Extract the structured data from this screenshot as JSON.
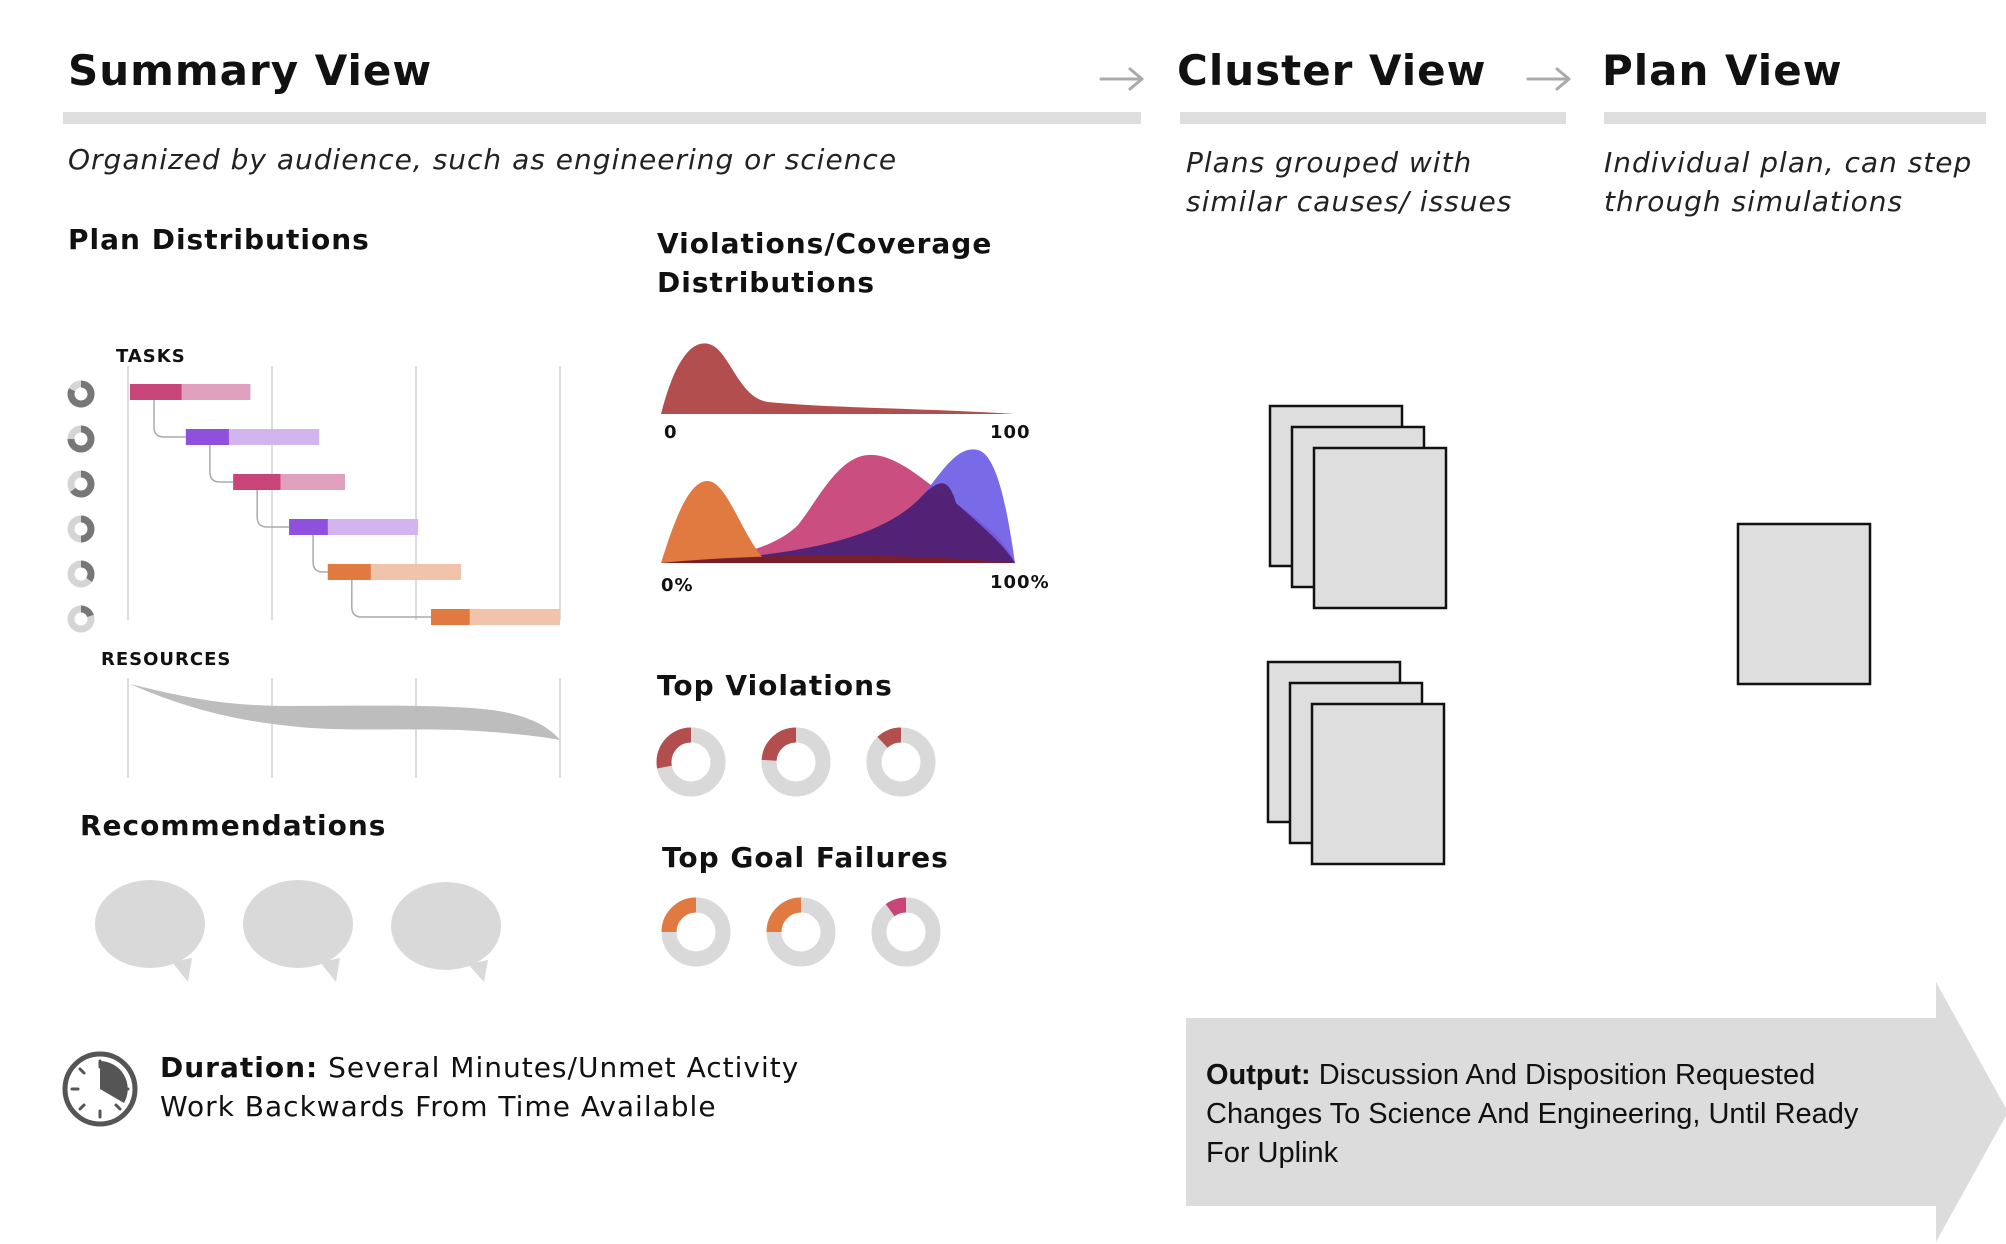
{
  "summary": {
    "title": "Summary View",
    "subtitle": "Organized by audience, such as engineering or science",
    "plan_distributions": {
      "title": "Plan Distributions",
      "tasks_label": "TASKS",
      "resources_label": "RESOURCES",
      "tasks": [
        {
          "start": 0.0,
          "progress": 0.12,
          "end": 0.28,
          "color": "#c8457a",
          "light": "#dfa1be"
        },
        {
          "start": 0.13,
          "progress": 0.23,
          "end": 0.44,
          "color": "#9050de",
          "light": "#d2b5ef"
        },
        {
          "start": 0.24,
          "progress": 0.35,
          "end": 0.5,
          "color": "#c8457a",
          "light": "#dfa1be"
        },
        {
          "start": 0.37,
          "progress": 0.46,
          "end": 0.67,
          "color": "#9050de",
          "light": "#d2b5ef"
        },
        {
          "start": 0.46,
          "progress": 0.56,
          "end": 0.77,
          "color": "#e07a40",
          "light": "#f1c3aa"
        },
        {
          "start": 0.7,
          "progress": 0.79,
          "end": 1.0,
          "color": "#e07a40",
          "light": "#f1c3aa"
        }
      ],
      "task_progress_rings": [
        0.82,
        0.75,
        0.65,
        0.5,
        0.35,
        0.2
      ]
    },
    "violations_coverage": {
      "title_line1": "Violations/Coverage",
      "title_line2": "Distributions",
      "top_axis_min": "0",
      "top_axis_max": "100",
      "bottom_axis_min": "0%",
      "bottom_axis_max": "100%"
    },
    "top_violations": {
      "title": "Top Violations",
      "donuts": [
        {
          "fraction": 0.28,
          "color": "#b24e4e"
        },
        {
          "fraction": 0.24,
          "color": "#b24e4e"
        },
        {
          "fraction": 0.12,
          "color": "#b24e4e"
        }
      ]
    },
    "top_goal_failures": {
      "title": "Top Goal Failures",
      "donuts": [
        {
          "fraction": 0.25,
          "color": "#e07a40"
        },
        {
          "fraction": 0.25,
          "color": "#e07a40"
        },
        {
          "fraction": 0.1,
          "color": "#c8457a"
        }
      ]
    },
    "recommendations": {
      "title": "Recommendations"
    },
    "duration": {
      "label": "Duration:",
      "line1": "Several Minutes/Unmet Activity",
      "line2": "Work Backwards From Time Available"
    }
  },
  "cluster": {
    "title": "Cluster View",
    "subtitle_line1": "Plans grouped with",
    "subtitle_line2": "similar causes/ issues"
  },
  "plan": {
    "title": "Plan View",
    "subtitle_line1": "Individual plan, can step",
    "subtitle_line2": "through simulations"
  },
  "output": {
    "label": "Output:",
    "line1": "Discussion And Disposition Requested",
    "line2": "Changes To Science And Engineering, Until Ready",
    "line3": "For Uplink"
  },
  "colors": {
    "header_bar": "#dedede",
    "gray_fill": "#dcdcdc",
    "violation_red": "#b24e4e",
    "orange": "#e07a40",
    "magenta": "#c8457a",
    "purple": "#7060e6"
  }
}
